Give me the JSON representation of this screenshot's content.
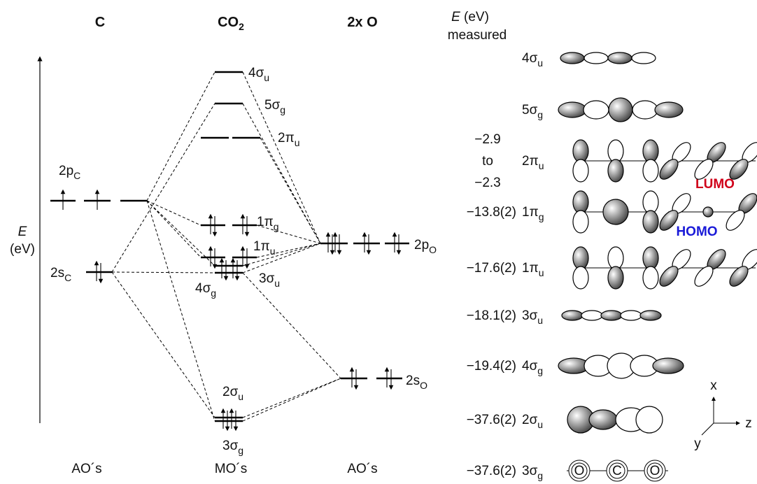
{
  "headers": {
    "c": "C",
    "co2": "CO",
    "co2_sub": "2",
    "o": "2x O",
    "e_symbol": "E",
    "e_unit": "(eV)",
    "measured": "measured"
  },
  "axis": {
    "symbol": "E",
    "unit": "(eV)"
  },
  "ao_levels": {
    "c_2p": {
      "name": "2p",
      "sub": "C"
    },
    "c_2s": {
      "name": "2s",
      "sub": "C"
    },
    "o_2p": {
      "name": "2p",
      "sub": "O"
    },
    "o_2s": {
      "name": "2s",
      "sub": "O"
    }
  },
  "mo_levels": [
    {
      "name": "4σ",
      "sub": "u"
    },
    {
      "name": "5σ",
      "sub": "g"
    },
    {
      "name": "2π",
      "sub": "u"
    },
    {
      "name": "1π",
      "sub": "g"
    },
    {
      "name": "1π",
      "sub": "u"
    },
    {
      "name": "3σ",
      "sub": "u"
    },
    {
      "name": "4σ",
      "sub": "g"
    },
    {
      "name": "2σ",
      "sub": "u"
    },
    {
      "name": "3σ",
      "sub": "g"
    }
  ],
  "table": {
    "rows": [
      {
        "orbital": "4σ",
        "sub": "u"
      },
      {
        "orbital": "5σ",
        "sub": "g"
      },
      {
        "energy": [
          "−2.9",
          "to",
          "−2.3"
        ],
        "orbital": "2π",
        "sub": "u"
      },
      {
        "energy": [
          "−13.8(2)"
        ],
        "orbital": "1π",
        "sub": "g"
      },
      {
        "energy": [
          "−17.6(2)"
        ],
        "orbital": "1π",
        "sub": "u"
      },
      {
        "energy": [
          "−18.1(2)"
        ],
        "orbital": "3σ",
        "sub": "u"
      },
      {
        "energy": [
          "−19.4(2)"
        ],
        "orbital": "4σ",
        "sub": "g"
      },
      {
        "energy": [
          "−37.6(2)"
        ],
        "orbital": "2σ",
        "sub": "u"
      },
      {
        "energy": [
          "−37.6(2)"
        ],
        "orbital": "3σ",
        "sub": "g"
      }
    ]
  },
  "labels": {
    "lumo": "LUMO",
    "homo": "HOMO"
  },
  "atoms": [
    "O",
    "C",
    "O"
  ],
  "footer": [
    "AO´s",
    "MO´s",
    "AO´s"
  ],
  "axes": [
    "x",
    "y",
    "z"
  ]
}
